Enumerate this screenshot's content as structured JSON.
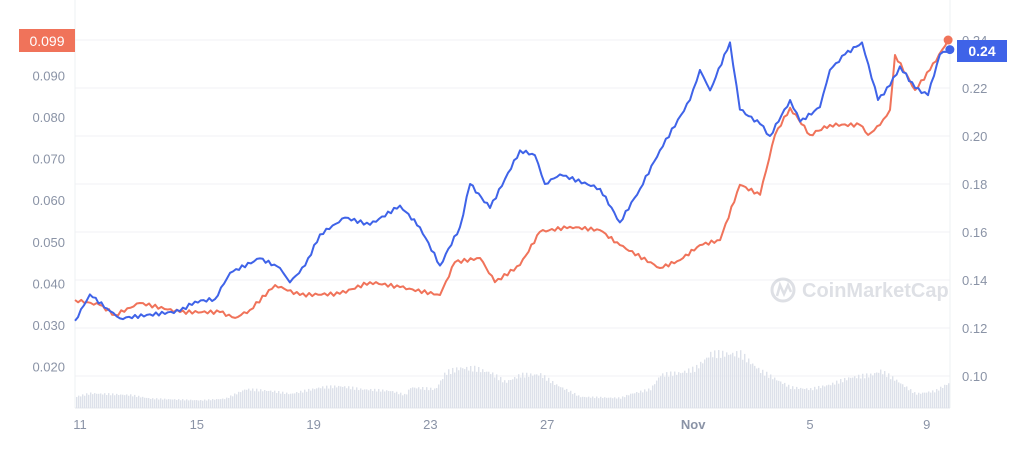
{
  "chart_data": {
    "type": "line",
    "title": "",
    "x_unit": "days since Oct 11",
    "x_ticks": [
      {
        "day": 0,
        "label": "11"
      },
      {
        "day": 4,
        "label": "15"
      },
      {
        "day": 8,
        "label": "19"
      },
      {
        "day": 12,
        "label": "23"
      },
      {
        "day": 16,
        "label": "27"
      },
      {
        "day": 21,
        "label": "Nov"
      },
      {
        "day": 25,
        "label": "5"
      },
      {
        "day": 29,
        "label": "9"
      }
    ],
    "left_axis": {
      "ticks": [
        "0.020",
        "0.030",
        "0.040",
        "0.050",
        "0.060",
        "0.070",
        "0.080",
        "0.090"
      ],
      "tick_values": [
        0.02,
        0.03,
        0.04,
        0.05,
        0.06,
        0.07,
        0.08,
        0.09
      ]
    },
    "right_axis": {
      "ticks": [
        "0.10",
        "0.12",
        "0.14",
        "0.16",
        "0.18",
        "0.20",
        "0.22",
        "0.24"
      ],
      "tick_values": [
        0.1,
        0.12,
        0.14,
        0.16,
        0.18,
        0.2,
        0.22,
        0.24
      ]
    },
    "series": [
      {
        "name": "orange",
        "axis": "left",
        "color": "#f0735a",
        "last_label": "0.099",
        "points": [
          [
            -0.17,
            0.036
          ],
          [
            0.68,
            0.0348
          ],
          [
            1.2,
            0.0324
          ],
          [
            2.05,
            0.0353
          ],
          [
            3.42,
            0.0331
          ],
          [
            4.79,
            0.0331
          ],
          [
            5.31,
            0.0317
          ],
          [
            5.82,
            0.0336
          ],
          [
            6.68,
            0.0396
          ],
          [
            7.53,
            0.0372
          ],
          [
            8.9,
            0.0375
          ],
          [
            9.93,
            0.0403
          ],
          [
            10.96,
            0.0391
          ],
          [
            12.33,
            0.0372
          ],
          [
            12.84,
            0.0451
          ],
          [
            13.7,
            0.0461
          ],
          [
            14.21,
            0.0403
          ],
          [
            15.07,
            0.0444
          ],
          [
            15.75,
            0.0524
          ],
          [
            16.78,
            0.0536
          ],
          [
            17.81,
            0.0528
          ],
          [
            18.49,
            0.0492
          ],
          [
            19.86,
            0.0437
          ],
          [
            20.55,
            0.0456
          ],
          [
            21.23,
            0.0492
          ],
          [
            21.92,
            0.0504
          ],
          [
            22.6,
            0.0637
          ],
          [
            23.29,
            0.0613
          ],
          [
            23.8,
            0.0757
          ],
          [
            24.32,
            0.0822
          ],
          [
            25.0,
            0.0757
          ],
          [
            25.68,
            0.0781
          ],
          [
            26.71,
            0.0781
          ],
          [
            26.99,
            0.0757
          ],
          [
            27.4,
            0.0781
          ],
          [
            27.74,
            0.0817
          ],
          [
            27.91,
            0.0949
          ],
          [
            28.6,
            0.0865
          ],
          [
            29.11,
            0.0913
          ],
          [
            29.73,
            0.0985
          ]
        ]
      },
      {
        "name": "blue",
        "axis": "right",
        "color": "#3f63e8",
        "last_label": "0.24",
        "points": [
          [
            -0.17,
            0.123
          ],
          [
            0.34,
            0.134
          ],
          [
            1.03,
            0.127
          ],
          [
            1.37,
            0.124
          ],
          [
            3.42,
            0.127
          ],
          [
            3.94,
            0.131
          ],
          [
            4.62,
            0.132
          ],
          [
            5.14,
            0.143
          ],
          [
            6.16,
            0.149
          ],
          [
            6.85,
            0.145
          ],
          [
            7.19,
            0.139
          ],
          [
            7.71,
            0.146
          ],
          [
            8.22,
            0.159
          ],
          [
            9.08,
            0.166
          ],
          [
            9.93,
            0.163
          ],
          [
            10.96,
            0.171
          ],
          [
            11.64,
            0.162
          ],
          [
            12.33,
            0.146
          ],
          [
            13.01,
            0.162
          ],
          [
            13.36,
            0.18
          ],
          [
            14.04,
            0.17
          ],
          [
            15.07,
            0.194
          ],
          [
            15.58,
            0.192
          ],
          [
            15.92,
            0.18
          ],
          [
            16.44,
            0.184
          ],
          [
            17.81,
            0.178
          ],
          [
            18.49,
            0.164
          ],
          [
            19.18,
            0.178
          ],
          [
            19.86,
            0.194
          ],
          [
            20.89,
            0.215
          ],
          [
            21.23,
            0.2275
          ],
          [
            21.58,
            0.219
          ],
          [
            22.26,
            0.239
          ],
          [
            22.6,
            0.211
          ],
          [
            23.29,
            0.205
          ],
          [
            23.63,
            0.2
          ],
          [
            24.32,
            0.215
          ],
          [
            24.66,
            0.206
          ],
          [
            25.34,
            0.212
          ],
          [
            25.68,
            0.2275
          ],
          [
            26.2,
            0.234
          ],
          [
            26.78,
            0.239
          ],
          [
            27.33,
            0.215
          ],
          [
            27.74,
            0.221
          ],
          [
            28.08,
            0.229
          ],
          [
            28.6,
            0.22
          ],
          [
            29.04,
            0.217
          ],
          [
            29.45,
            0.234
          ],
          [
            29.79,
            0.236
          ]
        ]
      }
    ],
    "volume_relative": [
      [
        -0.17,
        0.19
      ],
      [
        0.34,
        0.25
      ],
      [
        1.71,
        0.22
      ],
      [
        2.4,
        0.16
      ],
      [
        4.11,
        0.13
      ],
      [
        4.97,
        0.16
      ],
      [
        5.65,
        0.32
      ],
      [
        6.51,
        0.29
      ],
      [
        7.19,
        0.24
      ],
      [
        8.22,
        0.35
      ],
      [
        8.9,
        0.37
      ],
      [
        9.59,
        0.32
      ],
      [
        10.62,
        0.29
      ],
      [
        11.13,
        0.22
      ],
      [
        11.3,
        0.35
      ],
      [
        12.16,
        0.32
      ],
      [
        12.5,
        0.6
      ],
      [
        13.01,
        0.68
      ],
      [
        13.53,
        0.67
      ],
      [
        14.04,
        0.6
      ],
      [
        14.55,
        0.44
      ],
      [
        15.07,
        0.56
      ],
      [
        15.75,
        0.57
      ],
      [
        16.27,
        0.4
      ],
      [
        17.12,
        0.19
      ],
      [
        18.49,
        0.17
      ],
      [
        18.84,
        0.24
      ],
      [
        19.52,
        0.32
      ],
      [
        19.86,
        0.56
      ],
      [
        20.55,
        0.6
      ],
      [
        21.06,
        0.67
      ],
      [
        21.58,
        0.92
      ],
      [
        22.09,
        0.92
      ],
      [
        22.6,
        0.92
      ],
      [
        23.29,
        0.63
      ],
      [
        24.32,
        0.35
      ],
      [
        25.0,
        0.32
      ],
      [
        25.68,
        0.4
      ],
      [
        26.37,
        0.52
      ],
      [
        27.05,
        0.56
      ],
      [
        27.4,
        0.63
      ],
      [
        27.91,
        0.48
      ],
      [
        28.6,
        0.24
      ],
      [
        29.28,
        0.29
      ],
      [
        29.79,
        0.44
      ]
    ],
    "grid": true,
    "watermark": "CoinMarketCap"
  }
}
